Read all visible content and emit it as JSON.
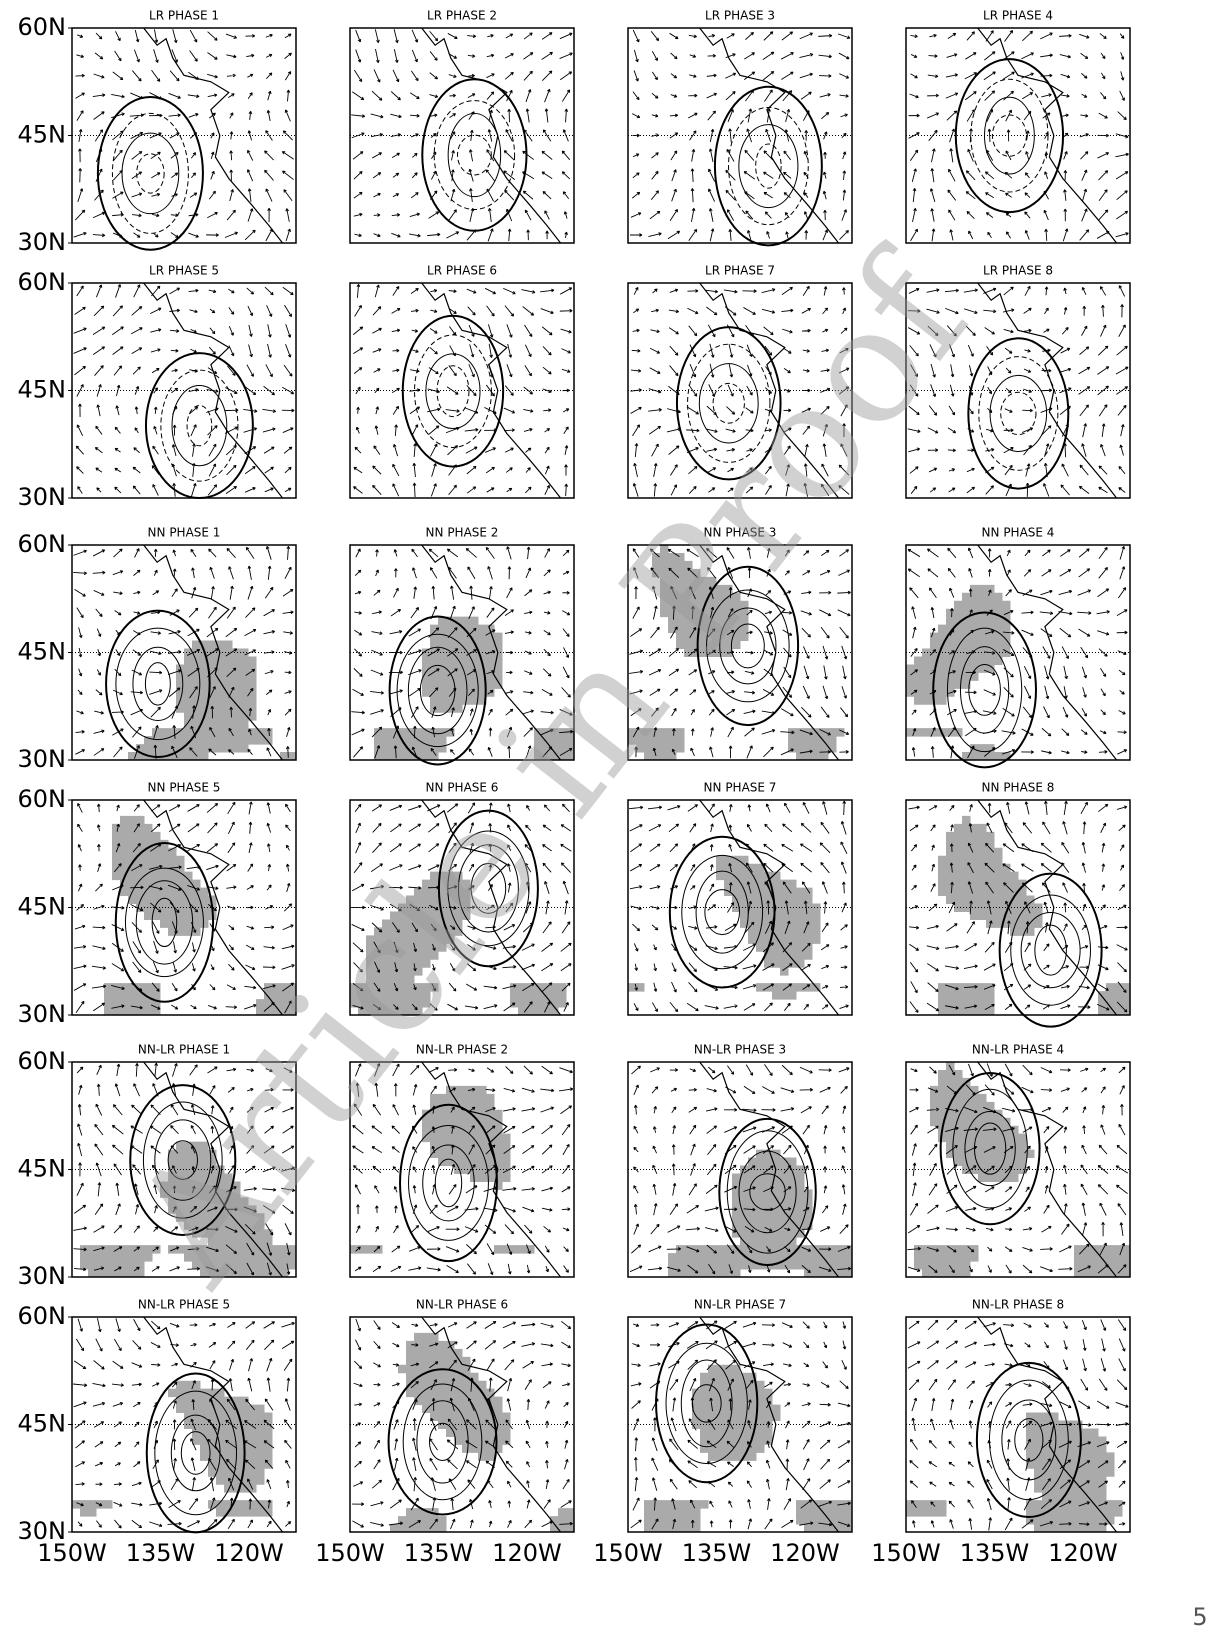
{
  "panels": [
    {
      "title": "LR PHASE 1"
    },
    {
      "title": "LR PHASE 2"
    },
    {
      "title": "LR PHASE 3"
    },
    {
      "title": "LR PHASE 4"
    },
    {
      "title": "LR PHASE 5"
    },
    {
      "title": "LR PHASE 6"
    },
    {
      "title": "LR PHASE 7"
    },
    {
      "title": "LR PHASE 8"
    },
    {
      "title": "NN PHASE 1"
    },
    {
      "title": "NN PHASE 2"
    },
    {
      "title": "NN PHASE 3"
    },
    {
      "title": "NN PHASE 4"
    },
    {
      "title": "NN PHASE 5"
    },
    {
      "title": "NN PHASE 6"
    },
    {
      "title": "NN PHASE 7"
    },
    {
      "title": "NN PHASE 8"
    },
    {
      "title": "NN-LR PHASE 1"
    },
    {
      "title": "NN-LR PHASE 2"
    },
    {
      "title": "NN-LR PHASE 3"
    },
    {
      "title": "NN-LR PHASE 4"
    },
    {
      "title": "NN-LR PHASE 5"
    },
    {
      "title": "NN-LR PHASE 6"
    },
    {
      "title": "NN-LR PHASE 7"
    },
    {
      "title": "NN-LR PHASE 8"
    }
  ],
  "y_labels": [
    "60N",
    "45N",
    "30N"
  ],
  "x_labels": [
    "150W",
    "135W",
    "120W"
  ],
  "watermark": "Article in Proof",
  "page_number": "5"
}
